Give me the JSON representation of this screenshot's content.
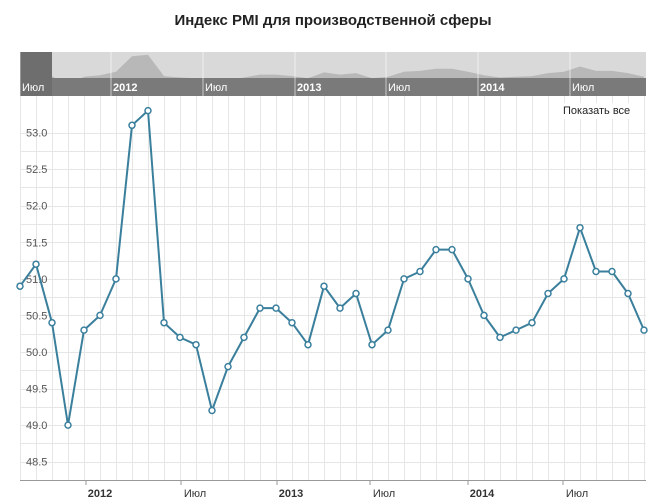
{
  "chart_data": {
    "type": "line",
    "title": "Индекс PMI для производственной сферы",
    "reset_label": "Показать все",
    "ylim": [
      48.25,
      53.5
    ],
    "yticks": [
      "48.5",
      "49.0",
      "49.5",
      "50.0",
      "50.5",
      "51.0",
      "51.5",
      "52.0",
      "52.5",
      "53.0"
    ],
    "xticks": [
      "2012",
      "Июл",
      "2013",
      "Июл",
      "2014",
      "Июл"
    ],
    "navigator_ticks": [
      "Июл",
      "2012",
      "Июл",
      "2013",
      "Июл",
      "2014",
      "Июл"
    ],
    "series": [
      {
        "color": "#3a7f9c",
        "values": [
          50.9,
          51.2,
          50.4,
          49.0,
          50.3,
          50.5,
          51.0,
          53.1,
          53.3,
          50.4,
          50.2,
          50.1,
          49.2,
          49.8,
          50.2,
          50.6,
          50.6,
          50.4,
          50.1,
          50.9,
          50.6,
          50.8,
          50.1,
          50.3,
          51.0,
          51.1,
          51.4,
          51.4,
          51.0,
          50.5,
          50.2,
          50.3,
          50.4,
          50.8,
          51.0,
          51.7,
          51.1,
          51.1,
          50.8,
          50.3
        ]
      }
    ],
    "grid": true
  }
}
